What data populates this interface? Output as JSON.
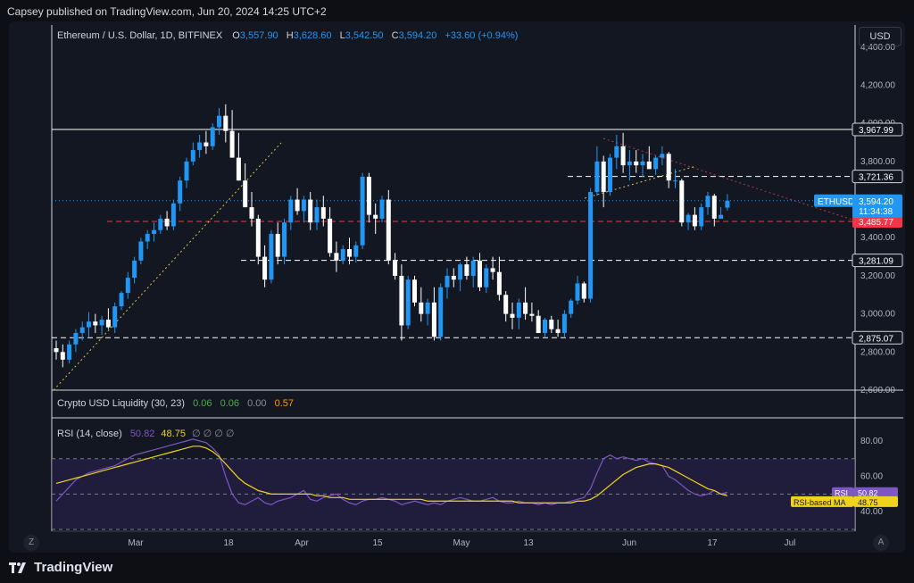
{
  "header": {
    "published": "Capsey published on TradingView.com, Jun 20, 2024 14:25 UTC+2"
  },
  "footer": {
    "logo_text": "TradingView",
    "logo_icon": "tradingview-logo-icon"
  },
  "toolbar": {
    "currency": "USD",
    "left_button": "Z",
    "right_button": "A"
  },
  "symbol": {
    "name": "Ethereum / U.S. Dollar, 1D, BITFINEX",
    "o_label": "O",
    "o": "3,557.90",
    "h_label": "H",
    "h": "3,628.60",
    "l_label": "L",
    "l": "3,542.50",
    "c_label": "C",
    "c": "3,594.20",
    "change": "+33.60 (+0.94%)"
  },
  "liquidity": {
    "name": "Crypto USD Liquidity (30, 23)",
    "v1": "0.06",
    "v2": "0.06",
    "v3": "0.00",
    "v4": "0.57"
  },
  "rsi_legend": {
    "name": "RSI (14, close)",
    "v1": "50.82",
    "v2": "48.75",
    "na": "∅ ∅ ∅ ∅"
  },
  "colors": {
    "up": "#2196f3",
    "down": "#ffffff",
    "rsi": "#7e57c2",
    "rsi_ma": "#f0d31c",
    "red_level": "#f23645",
    "bg": "#131722"
  },
  "chart_data": [
    {
      "type": "candlestick",
      "title": "Ethereum / U.S. Dollar, 1D, BITFINEX",
      "x_ticks": [
        "Mar",
        "18",
        "Apr",
        "15",
        "May",
        "13",
        "Jun",
        "17",
        "Jul"
      ],
      "y_ticks": [
        "4,400.00",
        "4,200.00",
        "4,000.00",
        "3,800.00",
        "3,600.00",
        "3,400.00",
        "3,200.00",
        "3,000.00",
        "2,800.00",
        "2,600.00"
      ],
      "ylim": [
        2600,
        4460
      ],
      "levels": [
        {
          "label": "3,967.99",
          "value": 3967.99,
          "style": "solid"
        },
        {
          "label": "3,721.36",
          "value": 3721.36,
          "style": "dashed"
        },
        {
          "label": "3,485.77",
          "value": 3485.77,
          "style": "dashed-red"
        },
        {
          "label": "3,281.09",
          "value": 3281.09,
          "style": "dashed"
        },
        {
          "label": "2,875.07",
          "value": 2875.07,
          "style": "dashed"
        }
      ],
      "price_tag": {
        "symbol": "ETHUSD",
        "price": "3,594.20",
        "countdown": "11:34:38",
        "value": 3594.2
      },
      "candles": [
        [
          2820,
          2860,
          2760,
          2800
        ],
        [
          2800,
          2840,
          2720,
          2760
        ],
        [
          2760,
          2860,
          2740,
          2840
        ],
        [
          2840,
          2920,
          2800,
          2900
        ],
        [
          2900,
          2960,
          2860,
          2930
        ],
        [
          2930,
          3010,
          2880,
          2960
        ],
        [
          2960,
          3000,
          2900,
          2940
        ],
        [
          2940,
          2990,
          2890,
          2970
        ],
        [
          2970,
          3030,
          2920,
          2930
        ],
        [
          2930,
          3060,
          2900,
          3040
        ],
        [
          3040,
          3120,
          3020,
          3110
        ],
        [
          3110,
          3220,
          3080,
          3190
        ],
        [
          3190,
          3300,
          3160,
          3280
        ],
        [
          3280,
          3400,
          3260,
          3380
        ],
        [
          3380,
          3440,
          3340,
          3420
        ],
        [
          3420,
          3480,
          3380,
          3440
        ],
        [
          3440,
          3520,
          3420,
          3500
        ],
        [
          3500,
          3540,
          3440,
          3460
        ],
        [
          3460,
          3600,
          3440,
          3580
        ],
        [
          3580,
          3720,
          3540,
          3700
        ],
        [
          3700,
          3820,
          3660,
          3800
        ],
        [
          3800,
          3900,
          3780,
          3860
        ],
        [
          3860,
          3940,
          3820,
          3900
        ],
        [
          3900,
          3960,
          3840,
          3880
        ],
        [
          3880,
          4000,
          3860,
          3980
        ],
        [
          3980,
          4080,
          3940,
          4040
        ],
        [
          4040,
          4100,
          3900,
          3960
        ],
        [
          3960,
          4070,
          3820,
          3820
        ],
        [
          3820,
          3950,
          3700,
          3700
        ],
        [
          3700,
          3790,
          3560,
          3560
        ],
        [
          3560,
          3640,
          3460,
          3500
        ],
        [
          3500,
          3520,
          3260,
          3300
        ],
        [
          3300,
          3360,
          3140,
          3180
        ],
        [
          3180,
          3440,
          3160,
          3420
        ],
        [
          3420,
          3480,
          3260,
          3300
        ],
        [
          3300,
          3500,
          3260,
          3480
        ],
        [
          3480,
          3620,
          3440,
          3600
        ],
        [
          3600,
          3660,
          3520,
          3540
        ],
        [
          3540,
          3620,
          3480,
          3600
        ],
        [
          3600,
          3640,
          3440,
          3480
        ],
        [
          3480,
          3600,
          3440,
          3560
        ],
        [
          3560,
          3620,
          3460,
          3500
        ],
        [
          3500,
          3560,
          3300,
          3320
        ],
        [
          3320,
          3380,
          3220,
          3280
        ],
        [
          3280,
          3360,
          3260,
          3340
        ],
        [
          3340,
          3400,
          3260,
          3300
        ],
        [
          3300,
          3380,
          3270,
          3360
        ],
        [
          3360,
          3740,
          3340,
          3720
        ],
        [
          3720,
          3740,
          3480,
          3520
        ],
        [
          3520,
          3580,
          3420,
          3500
        ],
        [
          3500,
          3620,
          3480,
          3600
        ],
        [
          3600,
          3650,
          3260,
          3280
        ],
        [
          3280,
          3320,
          3180,
          3200
        ],
        [
          3200,
          3260,
          2860,
          2940
        ],
        [
          2940,
          3200,
          2920,
          3180
        ],
        [
          3180,
          3200,
          3040,
          3060
        ],
        [
          3060,
          3140,
          2960,
          3000
        ],
        [
          3000,
          3080,
          2940,
          3060
        ],
        [
          3060,
          3140,
          2860,
          2880
        ],
        [
          2880,
          3160,
          2860,
          3140
        ],
        [
          3140,
          3240,
          3080,
          3200
        ],
        [
          3200,
          3240,
          3140,
          3180
        ],
        [
          3180,
          3270,
          3120,
          3260
        ],
        [
          3260,
          3300,
          3180,
          3200
        ],
        [
          3200,
          3300,
          3140,
          3280
        ],
        [
          3280,
          3320,
          3120,
          3140
        ],
        [
          3140,
          3260,
          3110,
          3240
        ],
        [
          3240,
          3300,
          3180,
          3220
        ],
        [
          3220,
          3300,
          3070,
          3100
        ],
        [
          3100,
          3120,
          2960,
          3000
        ],
        [
          3000,
          3060,
          2920,
          2980
        ],
        [
          2980,
          3080,
          2920,
          3060
        ],
        [
          3060,
          3140,
          2970,
          3000
        ],
        [
          3000,
          3060,
          2960,
          2990
        ],
        [
          2990,
          3020,
          2900,
          2900
        ],
        [
          2900,
          2980,
          2880,
          2970
        ],
        [
          2970,
          2990,
          2900,
          2920
        ],
        [
          2920,
          2970,
          2880,
          2900
        ],
        [
          2900,
          3020,
          2880,
          3000
        ],
        [
          3000,
          3080,
          2980,
          3070
        ],
        [
          3070,
          3200,
          3050,
          3160
        ],
        [
          3160,
          3170,
          3060,
          3080
        ],
        [
          3080,
          3660,
          3060,
          3640
        ],
        [
          3640,
          3880,
          3620,
          3800
        ],
        [
          3800,
          3830,
          3560,
          3640
        ],
        [
          3640,
          3840,
          3620,
          3820
        ],
        [
          3820,
          3940,
          3760,
          3880
        ],
        [
          3880,
          3950,
          3740,
          3780
        ],
        [
          3780,
          3860,
          3700,
          3800
        ],
        [
          3800,
          3860,
          3740,
          3780
        ],
        [
          3780,
          3840,
          3720,
          3800
        ],
        [
          3800,
          3880,
          3770,
          3760
        ],
        [
          3760,
          3830,
          3730,
          3820
        ],
        [
          3820,
          3880,
          3780,
          3840
        ],
        [
          3840,
          3850,
          3660,
          3700
        ],
        [
          3700,
          3760,
          3660,
          3700
        ],
        [
          3700,
          3710,
          3460,
          3480
        ],
        [
          3480,
          3530,
          3440,
          3520
        ],
        [
          3520,
          3560,
          3440,
          3460
        ],
        [
          3460,
          3580,
          3440,
          3560
        ],
        [
          3560,
          3640,
          3520,
          3620
        ],
        [
          3620,
          3630,
          3460,
          3500
        ],
        [
          3500,
          3560,
          3500,
          3520
        ],
        [
          3557.9,
          3628.6,
          3542.5,
          3594.2
        ]
      ]
    },
    {
      "type": "line",
      "title": "RSI (14, close)",
      "y_ticks": [
        "80.00",
        "60.00",
        "40.00"
      ],
      "ylim": [
        30,
        88
      ],
      "bands": [
        70,
        50,
        30
      ],
      "series": [
        {
          "name": "RSI",
          "value_label": "50.82",
          "values": [
            46,
            50,
            54,
            58,
            60,
            62,
            63,
            64,
            65,
            66,
            68,
            70,
            72,
            73,
            74,
            75,
            76,
            77,
            78,
            79,
            80,
            81,
            80,
            79,
            76,
            72,
            60,
            50,
            45,
            44,
            46,
            48,
            45,
            44,
            46,
            47,
            48,
            50,
            52,
            47,
            46,
            48,
            49,
            50,
            47,
            45,
            44,
            46,
            47,
            47,
            48,
            47,
            46,
            44,
            45,
            46,
            45,
            44,
            45,
            44,
            46,
            47,
            48,
            47,
            46,
            46,
            47,
            48,
            46,
            45,
            45,
            46,
            45,
            45,
            44,
            45,
            44,
            45,
            45,
            46,
            47,
            48,
            53,
            62,
            70,
            72,
            70,
            71,
            70,
            69,
            70,
            68,
            67,
            66,
            60,
            58,
            55,
            52,
            50,
            49,
            50,
            52,
            50,
            51
          ]
        },
        {
          "name": "RSI-based MA",
          "value_label": "48.75",
          "values": [
            56,
            57,
            58,
            59,
            60,
            61,
            62,
            63,
            64,
            65,
            66,
            67,
            68,
            69,
            70,
            71,
            72,
            73,
            74,
            75,
            76,
            77,
            77,
            76,
            74,
            71,
            67,
            63,
            59,
            56,
            54,
            52,
            51,
            50,
            50,
            50,
            50,
            50,
            50,
            50,
            49,
            49,
            48,
            48,
            48,
            47,
            47,
            47,
            47,
            47,
            47,
            47,
            47,
            47,
            47,
            47,
            47,
            46,
            46,
            46,
            46,
            46,
            46,
            46,
            46,
            46,
            46,
            46,
            46,
            46,
            46,
            45,
            45,
            45,
            45,
            45,
            45,
            45,
            45,
            45,
            46,
            46,
            47,
            49,
            52,
            55,
            58,
            61,
            63,
            65,
            66,
            67,
            67,
            66,
            65,
            63,
            61,
            59,
            57,
            55,
            53,
            52,
            50,
            49
          ]
        }
      ]
    }
  ]
}
